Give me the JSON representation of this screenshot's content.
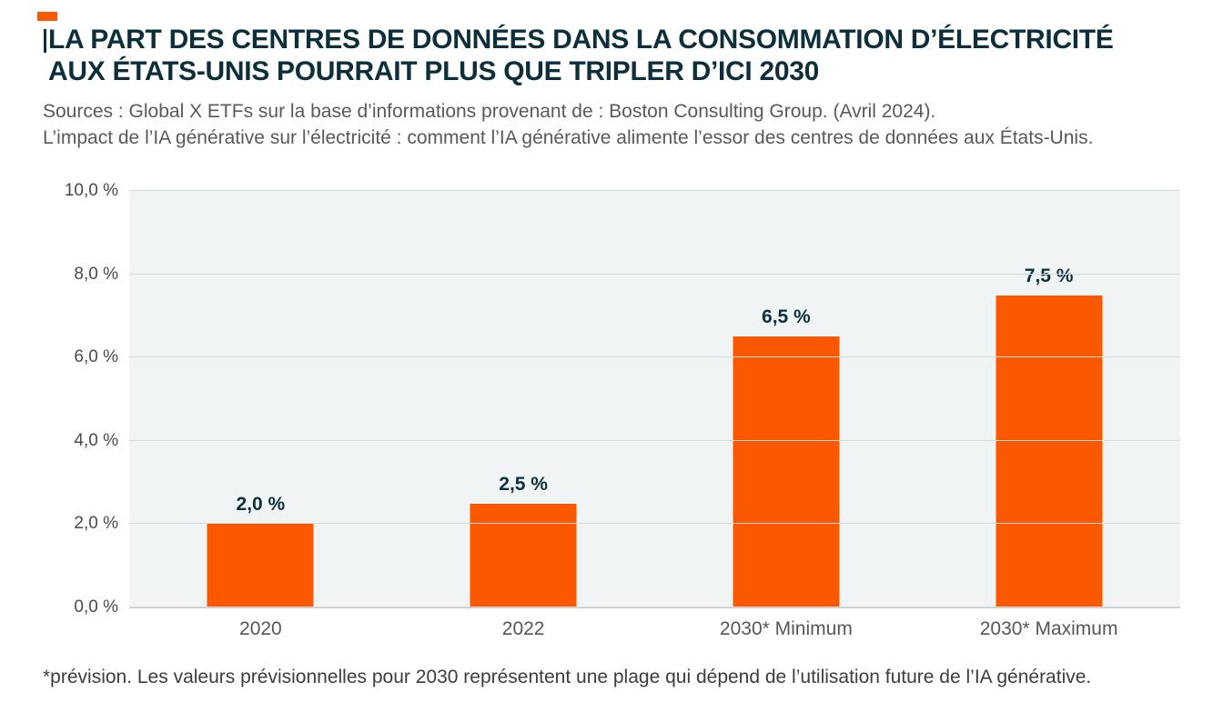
{
  "header": {
    "title_line1": "LA PART DES CENTRES DE DONNÉES DANS LA CONSOMMATION D’ÉLECTRICITÉ",
    "title_line2": "AUX ÉTATS-UNIS POURRAIT PLUS QUE TRIPLER D’ICI 2030",
    "source_line1": "Sources : Global X ETFs sur la base d’informations provenant de : Boston Consulting Group. (Avril 2024).",
    "source_line2": "L’impact de l’IA générative sur l’électricité : comment l’IA générative alimente l’essor des centres de données aux États-Unis."
  },
  "footnote": "*prévision. Les valeurs prévisionnelles pour 2030 représentent une plage qui dépend de l’utilisation future de l’IA générative.",
  "colors": {
    "accent_orange": "#fc5800",
    "title_dark": "#0d2f3c",
    "plot_background": "#f0f4f5",
    "gridline": "#d8dadb",
    "axis_line": "#c7cacc"
  },
  "chart_data": {
    "type": "bar",
    "title": "",
    "xlabel": "",
    "ylabel": "",
    "categories": [
      "2020",
      "2022",
      "2030* Minimum",
      "2030* Maximum"
    ],
    "values": [
      2.0,
      2.5,
      6.5,
      7.5
    ],
    "bar_labels": [
      "2,0 %",
      "2,5 %",
      "6,5 %",
      "7,5 %"
    ],
    "ylim": [
      0,
      10
    ],
    "yticks": [
      0,
      2,
      4,
      6,
      8,
      10
    ],
    "ytick_labels": [
      "0,0 %",
      "2,0 %",
      "4,0 %",
      "6,0 %",
      "8,0 %",
      "10,0 %"
    ],
    "grid": true,
    "legend": false,
    "bar_color": "#fc5800"
  }
}
